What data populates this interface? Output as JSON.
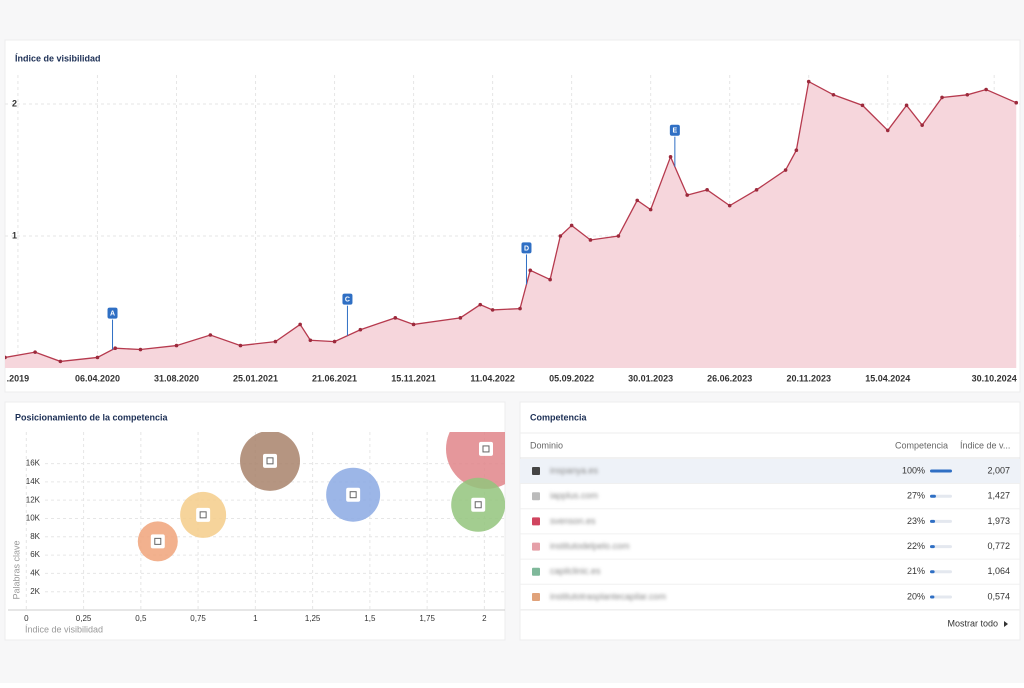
{
  "chart_data": [
    {
      "type": "line",
      "title": "Índice de visibilidad",
      "x": [
        "17.10.2019",
        "12.12.2019",
        "28.01.2020",
        "06.04.2020",
        "09.05.2020",
        "25.06.2020",
        "31.08.2020",
        "02.11.2020",
        "28.12.2020",
        "03.03.2021",
        "18.04.2021",
        "07.05.2021",
        "21.06.2021",
        "08.08.2021",
        "12.10.2021",
        "15.11.2021",
        "10.02.2022",
        "19.03.2022",
        "11.04.2022",
        "01.06.2022",
        "20.06.2022",
        "27.07.2022",
        "15.08.2022",
        "05.09.2022",
        "10.10.2022",
        "01.12.2022",
        "05.01.2023",
        "30.01.2023",
        "08.03.2023",
        "08.04.2023",
        "15.05.2023",
        "26.06.2023",
        "15.08.2023",
        "08.10.2023",
        "28.10.2023",
        "20.11.2023",
        "05.01.2024",
        "28.02.2024",
        "15.04.2024",
        "20.05.2024",
        "18.06.2024",
        "25.07.2024",
        "10.09.2024",
        "15.10.2024",
        "10.12.2024"
      ],
      "series": [
        {
          "color": "#b63a4e",
          "fill": "#f6d6dc",
          "values": [
            0.08,
            0.12,
            0.05,
            0.08,
            0.15,
            0.14,
            0.17,
            0.25,
            0.17,
            0.2,
            0.33,
            0.21,
            0.2,
            0.29,
            0.38,
            0.33,
            0.38,
            0.48,
            0.44,
            0.45,
            0.74,
            0.67,
            1.0,
            1.08,
            0.97,
            1.0,
            1.27,
            1.2,
            1.6,
            1.31,
            1.35,
            1.23,
            1.35,
            1.5,
            1.65,
            2.17,
            2.07,
            1.99,
            1.8,
            1.99,
            1.84,
            2.05,
            2.07,
            2.11,
            2.01
          ]
        }
      ],
      "xlim": [
        "17.10.2019",
        "17.12.2024"
      ],
      "ylim": [
        0,
        2.22
      ],
      "xticks": [
        {
          "value": "10.11.2019",
          "label": ".2019"
        },
        "06.04.2020",
        "31.08.2020",
        "25.01.2021",
        "21.06.2021",
        "15.11.2021",
        "11.04.2022",
        "05.09.2022",
        "30.01.2023",
        "26.06.2023",
        "20.11.2023",
        "15.04.2024",
        "30.10.2024"
      ],
      "yticks": [
        1,
        2
      ],
      "grid": true,
      "annotations": [
        {
          "label": "A",
          "x": "04.05.2020"
        },
        {
          "label": "C",
          "x": "15.07.2021"
        },
        {
          "label": "D",
          "x": "13.06.2022"
        },
        {
          "label": "E",
          "x": "16.03.2023"
        }
      ]
    },
    {
      "type": "bubble",
      "title": "Posicionamiento de la competencia",
      "x_label": "Índice de visibilidad",
      "y_label": "Palabras clave",
      "x": [
        0.574,
        0.772,
        1.064,
        1.427,
        2.007,
        1.973
      ],
      "values": [
        7500,
        10400,
        16300,
        12600,
        17600,
        11500
      ],
      "sizes": [
        20,
        23,
        30,
        27,
        40,
        27
      ],
      "colors": [
        "#f0a37a",
        "#f5cd8a",
        "#a8826b",
        "#8ba9e3",
        "#e0858a",
        "#93c47d"
      ],
      "xlim": [
        -0.08,
        2.09
      ],
      "ylim": [
        0,
        19450
      ],
      "xticks": [
        0,
        {
          "value": 0.25,
          "label": "0,25"
        },
        {
          "value": 0.5,
          "label": "0,5"
        },
        {
          "value": 0.75,
          "label": "0,75"
        },
        1,
        {
          "value": 1.25,
          "label": "1,25"
        },
        {
          "value": 1.5,
          "label": "1,5"
        },
        {
          "value": 1.75,
          "label": "1,75"
        },
        2
      ],
      "yticks": [
        {
          "value": 2000,
          "label": "2K"
        },
        {
          "value": 4000,
          "label": "4K"
        },
        {
          "value": 6000,
          "label": "6K"
        },
        {
          "value": 8000,
          "label": "8K"
        },
        {
          "value": 10000,
          "label": "10K"
        },
        {
          "value": 12000,
          "label": "12K"
        },
        {
          "value": 14000,
          "label": "14K"
        },
        {
          "value": 16000,
          "label": "16K"
        }
      ],
      "grid": true
    }
  ],
  "competitors": {
    "title": "Competencia",
    "headers": [
      "Dominio",
      "Competencia",
      "Índice de v..."
    ],
    "rows": [
      {
        "domain": "inspanya.es",
        "color": "#444444",
        "share": {
          "value": 100,
          "label": "100%"
        },
        "index": "2,007"
      },
      {
        "domain": "iapplus.com",
        "color": "#bbbbbb",
        "share": {
          "value": 27,
          "label": "27%"
        },
        "index": "1,427"
      },
      {
        "domain": "svenson.es",
        "color": "#d0455f",
        "share": {
          "value": 23,
          "label": "23%"
        },
        "index": "1,973"
      },
      {
        "domain": "institutodelpelo.com",
        "color": "#e5a0a8",
        "share": {
          "value": 22,
          "label": "22%"
        },
        "index": "0,772"
      },
      {
        "domain": "capilclinic.es",
        "color": "#7fb89a",
        "share": {
          "value": 21,
          "label": "21%"
        },
        "index": "1,064"
      },
      {
        "domain": "institutotrasplantecapilar.com",
        "color": "#e0a27a",
        "share": {
          "value": 20,
          "label": "20%"
        },
        "index": "0,574"
      }
    ],
    "footer": "Mostrar todo"
  }
}
